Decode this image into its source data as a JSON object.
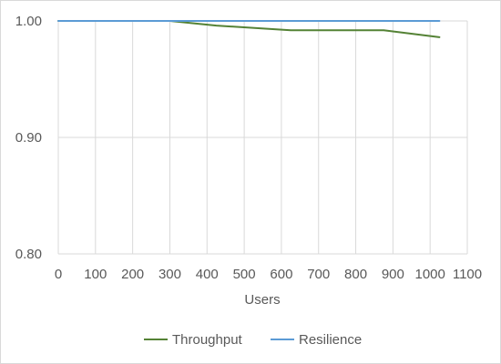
{
  "chart_data": {
    "type": "line",
    "title": "",
    "xlabel": "Users",
    "ylabel": "",
    "xlim": [
      0,
      1100
    ],
    "ylim": [
      0.8,
      1.0
    ],
    "x_ticks": [
      "0",
      "100",
      "200",
      "300",
      "400",
      "500",
      "600",
      "700",
      "800",
      "900",
      "1000",
      "1100"
    ],
    "y_ticks": [
      "0.80",
      "0.90",
      "1.00"
    ],
    "grid": true,
    "legend_position": "bottom",
    "series": [
      {
        "name": "Throughput",
        "color": "#548235",
        "points": [
          [
            0,
            1.0
          ],
          [
            100,
            1.0
          ],
          [
            200,
            1.0
          ],
          [
            300,
            1.0
          ],
          [
            425,
            0.996
          ],
          [
            625,
            0.992
          ],
          [
            875,
            0.992
          ],
          [
            1025,
            0.986
          ]
        ]
      },
      {
        "name": "Resilience",
        "color": "#5b9bd5",
        "points": [
          [
            0,
            1.0
          ],
          [
            1025,
            1.0
          ]
        ]
      }
    ]
  }
}
